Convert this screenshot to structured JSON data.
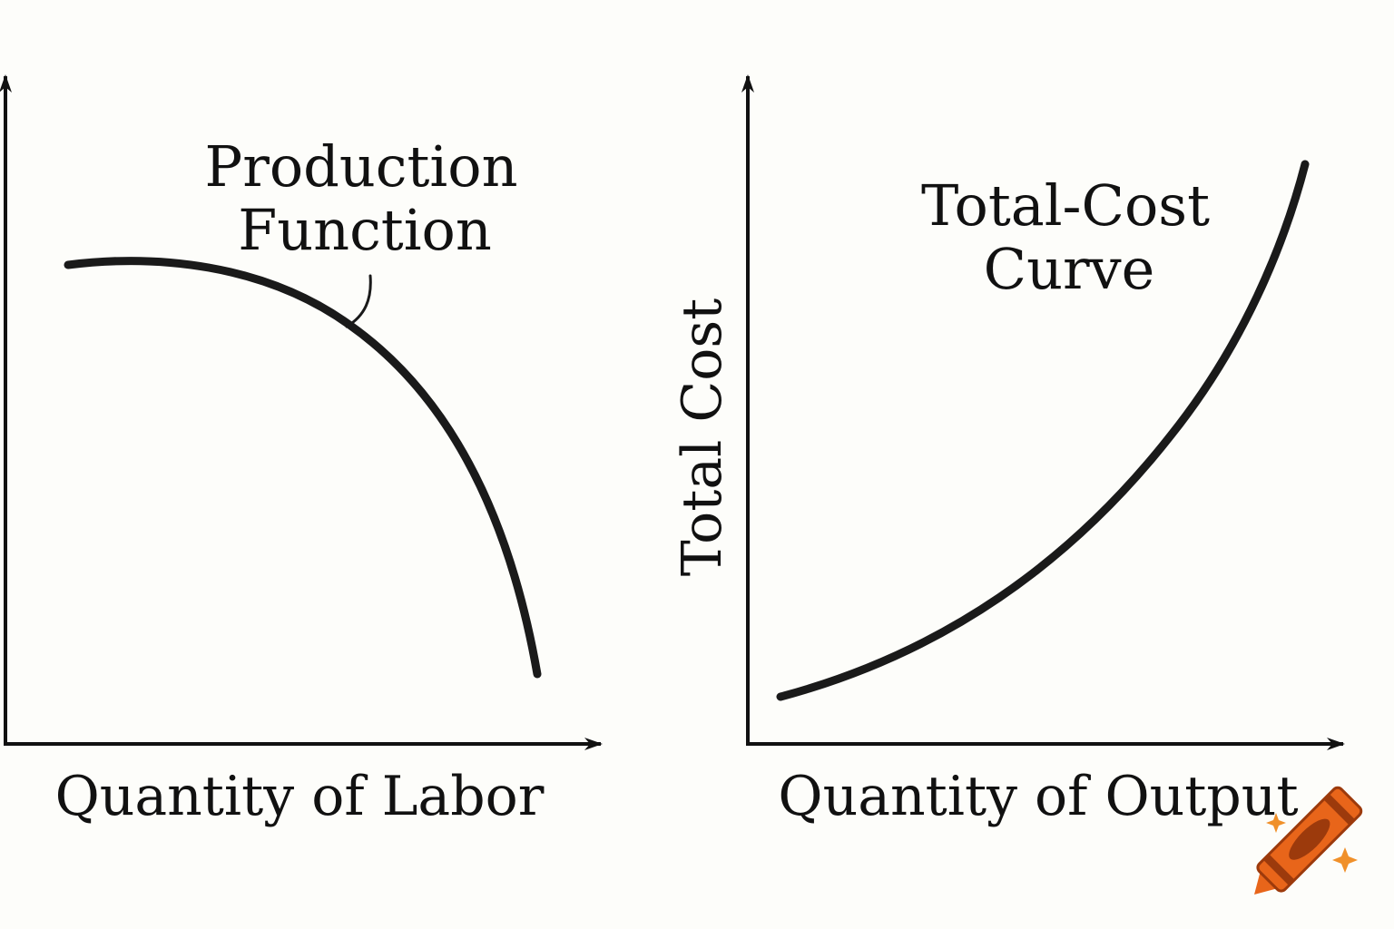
{
  "chart_data": [
    {
      "type": "line",
      "title": "",
      "xlabel": "Quantity of Labor",
      "ylabel": "",
      "annotation": [
        "Production",
        "Function"
      ],
      "series": [
        {
          "name": "Production Function",
          "shape": "concave, rising slightly then falling steeply",
          "color": "#1a1a1a"
        }
      ],
      "grid": false,
      "legend": "none"
    },
    {
      "type": "line",
      "title": "",
      "xlabel": "Quantity of Output",
      "ylabel": "Total Cost",
      "annotation": [
        "Total-Cost",
        "Curve"
      ],
      "series": [
        {
          "name": "Total-Cost Curve",
          "shape": "convex, increasing at an increasing rate",
          "color": "#1a1a1a"
        }
      ],
      "grid": false,
      "legend": "none"
    }
  ],
  "logo": {
    "icon": "crayon-icon",
    "body_color": "#e8651a",
    "dark_color": "#9c3a0c",
    "sparkle_color": "#f0902a"
  }
}
